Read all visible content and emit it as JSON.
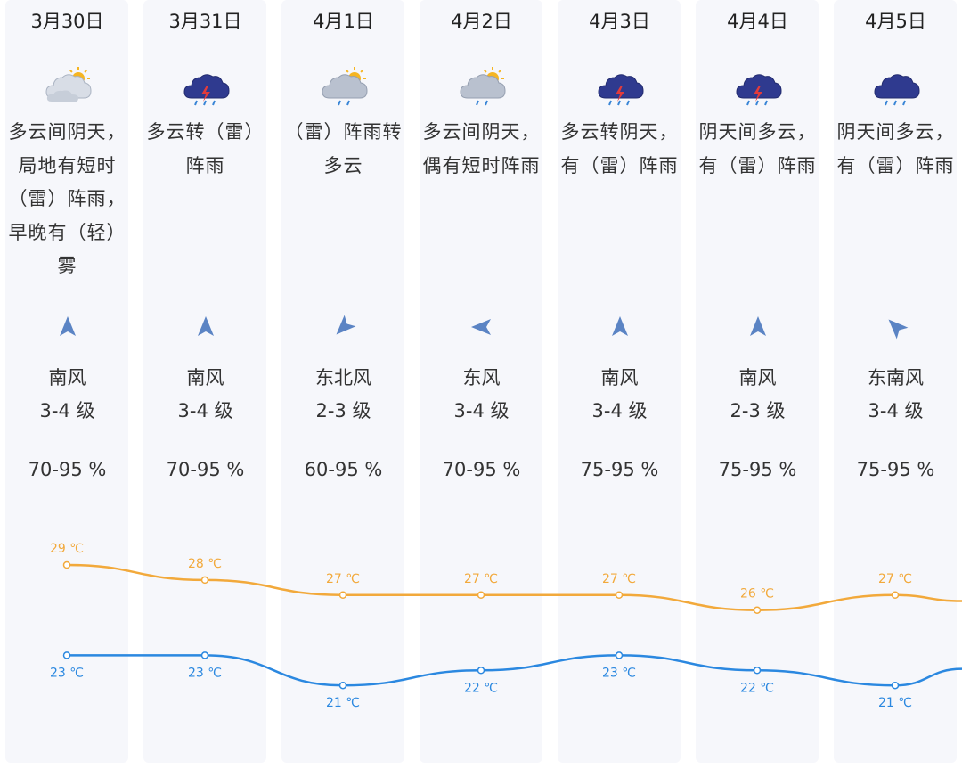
{
  "days": [
    {
      "date": "3月30日",
      "icon": "partly-cloudy-sun-icon",
      "desc": "多云间阴天，局地有短时（雷）阵雨，早晚有（轻）雾",
      "wind_dir": "南风",
      "wind_level": "3-4 级",
      "humidity": "70-95 %",
      "arrow_rotation_deg": 0
    },
    {
      "date": "3月31日",
      "icon": "thunderstorm-icon",
      "desc": "多云转（雷）阵雨",
      "wind_dir": "南风",
      "wind_level": "3-4 级",
      "humidity": "70-95 %",
      "arrow_rotation_deg": 0
    },
    {
      "date": "4月1日",
      "icon": "cloud-sun-rain-icon",
      "desc": "（雷）阵雨转多云",
      "wind_dir": "东北风",
      "wind_level": "2-3 级",
      "humidity": "60-95 %",
      "arrow_rotation_deg": 225
    },
    {
      "date": "4月2日",
      "icon": "cloud-sun-rain-icon",
      "desc": "多云间阴天，偶有短时阵雨",
      "wind_dir": "东风",
      "wind_level": "3-4 级",
      "humidity": "70-95 %",
      "arrow_rotation_deg": 270
    },
    {
      "date": "4月3日",
      "icon": "thunderstorm-icon",
      "desc": "多云转阴天，有（雷）阵雨",
      "wind_dir": "南风",
      "wind_level": "3-4 级",
      "humidity": "75-95 %",
      "arrow_rotation_deg": 0
    },
    {
      "date": "4月4日",
      "icon": "thunderstorm-icon",
      "desc": "阴天间多云，有（雷）阵雨",
      "wind_dir": "南风",
      "wind_level": "2-3 级",
      "humidity": "75-95 %",
      "arrow_rotation_deg": 0
    },
    {
      "date": "4月5日",
      "icon": "rain-cloud-icon",
      "desc": "阴天间多云，有（雷）阵雨",
      "wind_dir": "东南风",
      "wind_level": "3-4 级",
      "humidity": "75-95 %",
      "arrow_rotation_deg": 315
    }
  ],
  "chart_data": {
    "type": "line",
    "categories": [
      "3月30日",
      "3月31日",
      "4月1日",
      "4月2日",
      "4月3日",
      "4月4日",
      "4月5日"
    ],
    "series": [
      {
        "name": "",
        "values": [
          29,
          28,
          27,
          27,
          27,
          26,
          27
        ],
        "color": "#f2a93b"
      },
      {
        "name": "",
        "values": [
          23,
          23,
          21,
          22,
          23,
          22,
          21
        ],
        "color": "#2b88e0"
      }
    ],
    "unit": "℃"
  },
  "colors": {
    "high": "#f2a93b",
    "low": "#2b88e0",
    "column_bg": "#f6f7fb",
    "arrow": "#5b84c4"
  }
}
